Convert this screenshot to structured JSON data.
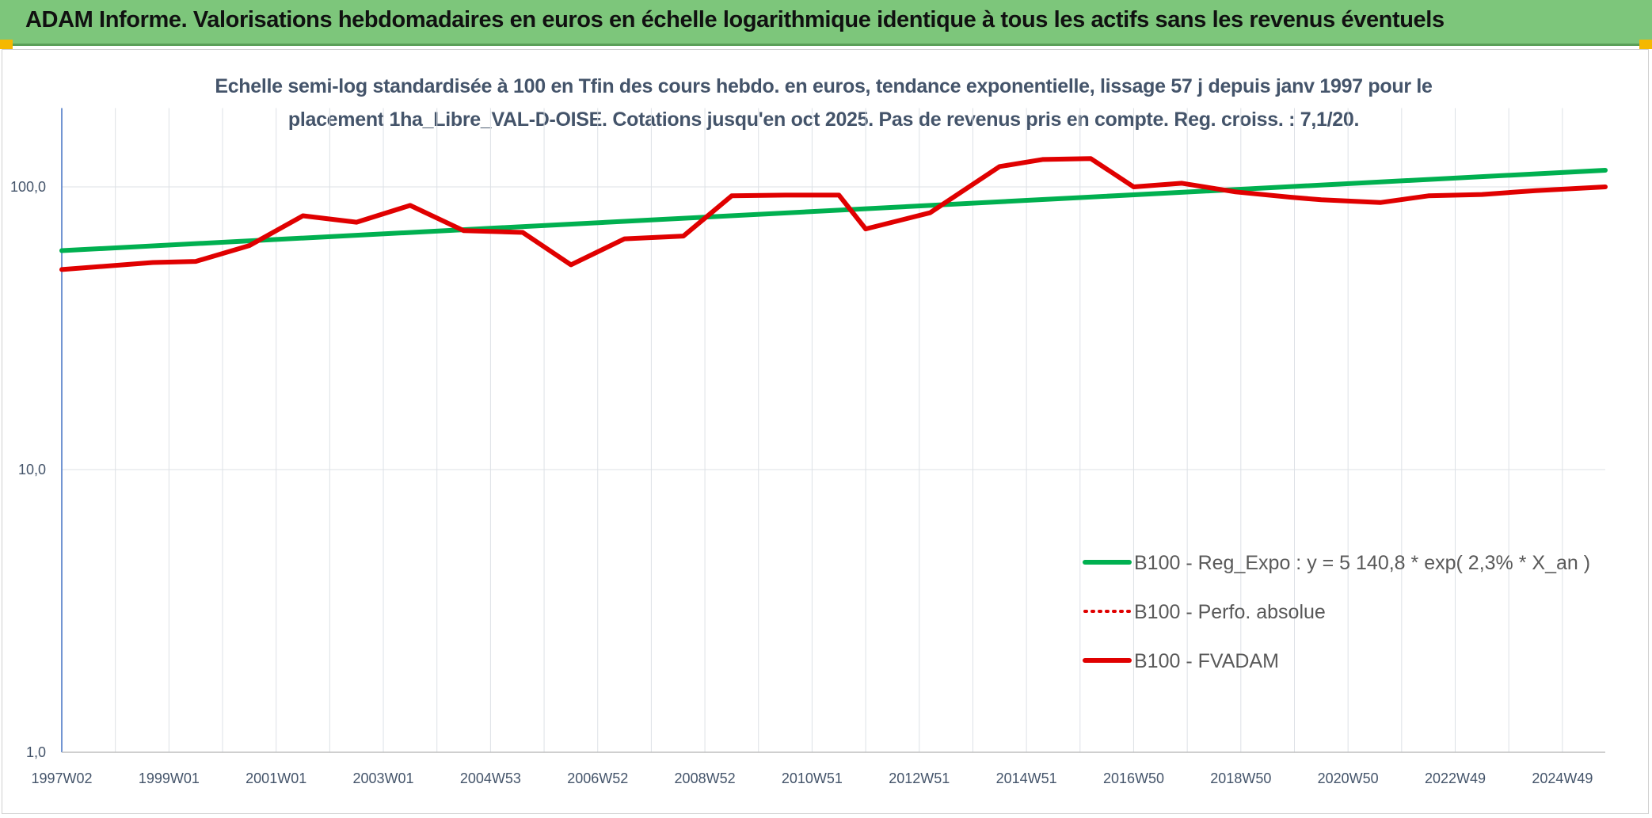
{
  "banner": {
    "title": "ADAM Informe. Valorisations hebdomadaires en euros en échelle logarithmique identique à tous les actifs sans les revenus éventuels",
    "color": "#7dc67b"
  },
  "chart_data": {
    "type": "line",
    "title": "Echelle semi-log standardisée à 100 en Tfin des cours hebdo. en euros, tendance exponentielle, lissage 57 j depuis janv 1997 pour le placement 1ha_Libre_VAL-D-OISE. Cotations jusqu'en oct 2025. Pas de revenus pris en compte. Reg. croiss. : 7,1/20.",
    "y_scale": "log",
    "ylim": [
      1,
      190
    ],
    "y_ticks": [
      {
        "value": 1,
        "label": "1,0"
      },
      {
        "value": 10,
        "label": "10,0"
      },
      {
        "value": 100,
        "label": "100,0"
      }
    ],
    "x_range": [
      1997.0,
      2025.8
    ],
    "x_ticks": [
      {
        "x": 1997.0,
        "label": "1997W02"
      },
      {
        "x": 1999.0,
        "label": "1999W01"
      },
      {
        "x": 2001.0,
        "label": "2001W01"
      },
      {
        "x": 2003.0,
        "label": "2003W01"
      },
      {
        "x": 2005.0,
        "label": "2004W53"
      },
      {
        "x": 2007.0,
        "label": "2006W52"
      },
      {
        "x": 2009.0,
        "label": "2008W52"
      },
      {
        "x": 2011.0,
        "label": "2010W51"
      },
      {
        "x": 2013.0,
        "label": "2012W51"
      },
      {
        "x": 2015.0,
        "label": "2014W51"
      },
      {
        "x": 2017.0,
        "label": "2016W50"
      },
      {
        "x": 2019.0,
        "label": "2018W50"
      },
      {
        "x": 2021.0,
        "label": "2020W50"
      },
      {
        "x": 2023.0,
        "label": "2022W49"
      },
      {
        "x": 2025.0,
        "label": "2024W49"
      }
    ],
    "grid": "vertical",
    "legend_position": "bottom-right",
    "series": [
      {
        "name": "B100 - Reg_Expo : y = 5 140,8 * exp( 2,3% *  X_an )",
        "color": "#00b050",
        "style": "solid",
        "points": [
          [
            1997.0,
            59.5
          ],
          [
            2025.8,
            114.5
          ]
        ]
      },
      {
        "name": "B100 - Perfo. absolue",
        "color": "#e00000",
        "style": "dotted",
        "points": []
      },
      {
        "name": "B100 - FVADAM",
        "color": "#e00000",
        "style": "solid",
        "points": [
          [
            1997.0,
            51
          ],
          [
            1998.7,
            54
          ],
          [
            1999.5,
            54.5
          ],
          [
            2000.5,
            62
          ],
          [
            2001.5,
            79
          ],
          [
            2002.5,
            75
          ],
          [
            2003.5,
            86
          ],
          [
            2004.5,
            70
          ],
          [
            2005.6,
            69
          ],
          [
            2006.5,
            53
          ],
          [
            2007.5,
            65.5
          ],
          [
            2008.6,
            67
          ],
          [
            2009.5,
            93
          ],
          [
            2010.5,
            93.5
          ],
          [
            2011.5,
            93.5
          ],
          [
            2012.0,
            71
          ],
          [
            2013.2,
            81
          ],
          [
            2014.5,
            118
          ],
          [
            2015.3,
            125
          ],
          [
            2016.2,
            126
          ],
          [
            2017.0,
            100
          ],
          [
            2017.9,
            103
          ],
          [
            2018.9,
            96
          ],
          [
            2019.9,
            92
          ],
          [
            2020.5,
            90
          ],
          [
            2021.6,
            88
          ],
          [
            2022.5,
            93
          ],
          [
            2023.5,
            94
          ],
          [
            2024.5,
            97
          ],
          [
            2025.8,
            100
          ]
        ]
      }
    ]
  }
}
